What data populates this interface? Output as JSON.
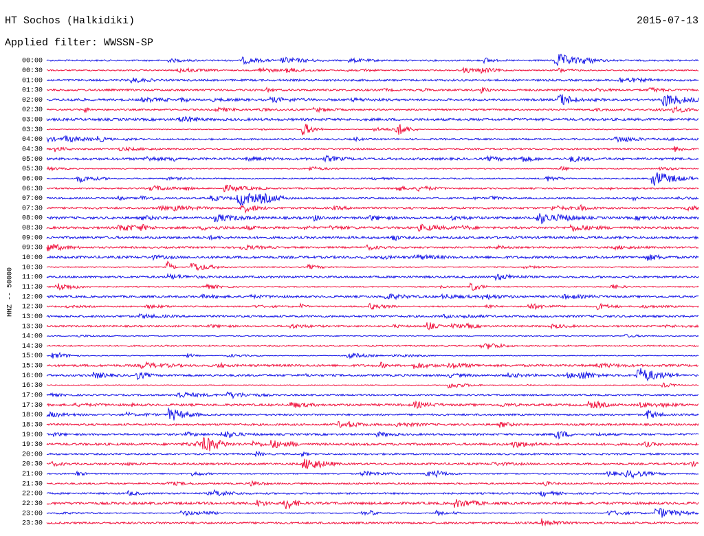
{
  "header": {
    "title": "HT Sochos (Halkidiki)",
    "date": "2015-07-13",
    "filter": "Applied filter: WWSSN-SP"
  },
  "axis_label": "HHZ -- 50000",
  "trace_colors": [
    "#1414e6",
    "#f0103c"
  ],
  "rows": [
    "00:00",
    "00:30",
    "01:00",
    "01:30",
    "02:00",
    "02:30",
    "03:00",
    "03:30",
    "04:00",
    "04:30",
    "05:00",
    "05:30",
    "06:00",
    "06:30",
    "07:00",
    "07:30",
    "08:00",
    "08:30",
    "09:00",
    "09:30",
    "10:00",
    "10:30",
    "11:00",
    "11:30",
    "12:00",
    "12:30",
    "13:00",
    "13:30",
    "14:00",
    "14:30",
    "15:00",
    "15:30",
    "16:00",
    "16:30",
    "17:00",
    "17:30",
    "18:00",
    "18:30",
    "19:00",
    "19:30",
    "20:00",
    "20:30",
    "21:00",
    "21:30",
    "22:00",
    "22:30",
    "23:00",
    "23:30"
  ]
}
